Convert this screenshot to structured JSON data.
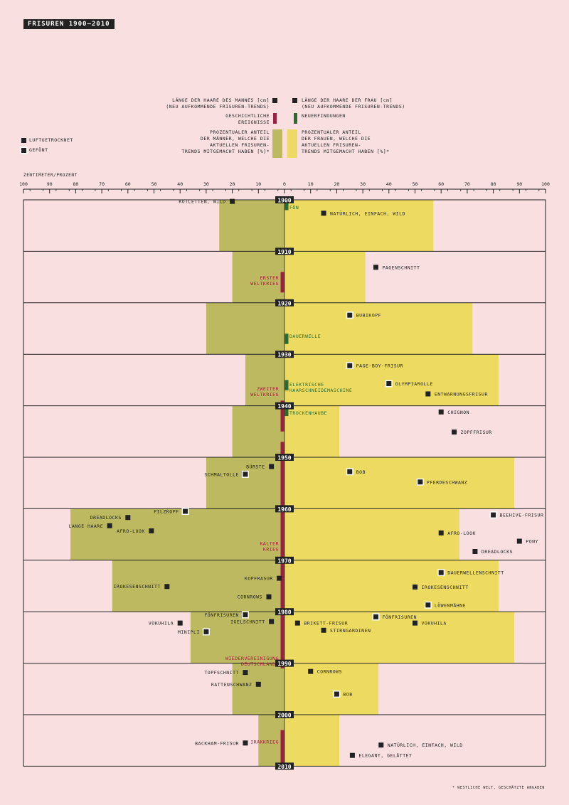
{
  "title": "FRISUREN 1900–2010",
  "footnote": "* WESTLICHE WELT, GESCHÄTZTE ANGABEN",
  "legend": {
    "men_length": "LÄNGE DER HAARE DES MANNES [cm]\n(NEU AUFKOMMENDE FRISUREN-TRENDS)",
    "women_length": "LÄNGE DER HAARE DER FRAU [cm]\n(NEU AUFKOMMENDE FRISUREN-TRENDS)",
    "historical": "GESCHICHTLICHE\nEREIGNISSE",
    "inventions": "NEUERFINDUNGEN",
    "men_percent": "PROZENTUALER ANTEIL\nDER MÄNNER, WELCHE DIE\nAKTUELLEN FRISUREN-\nTRENDS MITGEMACHT HABEN [%]*",
    "women_percent": "PROZENTUALER ANTEIL\nDER FRAUEN, WELCHE DIE\nAKTUELLEN FRISUREN-\nTRENDS MITGEMACHT HABEN [%]*",
    "air_dried": "LUFTGETROCKNET",
    "blow_dried": "GEFÖNT"
  },
  "axis_unit": "ZENTIMETER/PROZENT",
  "colors": {
    "background": "#f9dfe0",
    "men_bar": "#bcb960",
    "women_bar": "#ecdb60",
    "event": "#9b2142",
    "event_text": "#a8193a",
    "invention": "#2d6a2f",
    "invention_text": "#2d6a2f",
    "ink": "#222222"
  },
  "chart_data": {
    "type": "bar",
    "orientation": "diverging-horizontal",
    "x_ticks": [
      "100",
      "90",
      "80",
      "70",
      "60",
      "50",
      "40",
      "30",
      "20",
      "10",
      "0",
      "10",
      "20",
      "30",
      "40",
      "50",
      "60",
      "70",
      "80",
      "90",
      "100"
    ],
    "xlim": [
      -100,
      100
    ],
    "decades": [
      "1900",
      "1910",
      "1920",
      "1930",
      "1940",
      "1950",
      "1960",
      "1970",
      "1980",
      "1990",
      "2000",
      "2010"
    ],
    "series": [
      {
        "name": "PROZENTUALER ANTEIL DER MÄNNER",
        "values": [
          25,
          20,
          30,
          15,
          20,
          30,
          82,
          66,
          36,
          20,
          10
        ]
      },
      {
        "name": "PROZENTUALER ANTEIL DER FRAUEN",
        "values": [
          57,
          31,
          72,
          82,
          21,
          88,
          67,
          82,
          88,
          36,
          21
        ]
      }
    ],
    "men_styles": [
      {
        "label": "KOTLETTEN, WILD",
        "year": 1900.3,
        "value": 20,
        "style": "air"
      },
      {
        "label": "BÜRSTE",
        "year": 1951.8,
        "value": 5,
        "style": "air"
      },
      {
        "label": "SCHMALTOLLE",
        "year": 1953.3,
        "value": 15,
        "style": "blow"
      },
      {
        "label": "PILZKOPF",
        "year": 1960.5,
        "value": 38,
        "style": "blow"
      },
      {
        "label": "DREADLOCKS",
        "year": 1961.7,
        "value": 60,
        "style": "air"
      },
      {
        "label": "LANGE HAARE",
        "year": 1963.3,
        "value": 67,
        "style": "air"
      },
      {
        "label": "AFRO-LOOK",
        "year": 1964.3,
        "value": 51,
        "style": "air"
      },
      {
        "label": "KOPFRASUR",
        "year": 1973.5,
        "value": 2,
        "style": "air"
      },
      {
        "label": "IROKESENSCHNITT",
        "year": 1975.1,
        "value": 45,
        "style": "air"
      },
      {
        "label": "CORNROWS",
        "year": 1977.1,
        "value": 6,
        "style": "air"
      },
      {
        "label": "FÖNFRISUREN",
        "year": 1980.6,
        "value": 15,
        "style": "blow"
      },
      {
        "label": "IGELSCHNITT",
        "year": 1981.9,
        "value": 5,
        "style": "air"
      },
      {
        "label": "VOKUHILA",
        "year": 1982.2,
        "value": 40,
        "style": "air"
      },
      {
        "label": "MINIPLI",
        "year": 1983.9,
        "value": 30,
        "style": "blow"
      },
      {
        "label": "TOPFSCHNITT",
        "year": 1991.8,
        "value": 15,
        "style": "air"
      },
      {
        "label": "RATTENSCHWANZ",
        "year": 1994.1,
        "value": 10,
        "style": "air"
      },
      {
        "label": "BACKHAM-FRISUR",
        "year": 2005.5,
        "value": 15,
        "style": "air"
      }
    ],
    "women_styles": [
      {
        "label": "NATÜRLICH, EINFACH, WILD",
        "year": 1902.6,
        "value": 15,
        "style": "air"
      },
      {
        "label": "PAGENSCHNITT",
        "year": 1913.1,
        "value": 35,
        "style": "air"
      },
      {
        "label": "BUBIKOPF",
        "year": 1922.4,
        "value": 25,
        "style": "blow"
      },
      {
        "label": "PAGE-BOY-FRISUR",
        "year": 1932.2,
        "value": 25,
        "style": "blow"
      },
      {
        "label": "OLYMPIAROLLE",
        "year": 1935.7,
        "value": 40,
        "style": "blow"
      },
      {
        "label": "ENTWARNUNGSFRISUR",
        "year": 1937.7,
        "value": 55,
        "style": "air"
      },
      {
        "label": "CHIGNON",
        "year": 1941.2,
        "value": 60,
        "style": "air"
      },
      {
        "label": "ZOPFFRISUR",
        "year": 1945.1,
        "value": 65,
        "style": "air"
      },
      {
        "label": "BOB",
        "year": 1952.8,
        "value": 25,
        "style": "blow"
      },
      {
        "label": "PFERDESCHWANZ",
        "year": 1954.8,
        "value": 52,
        "style": "blow"
      },
      {
        "label": "BEEHIVE-FRISUR",
        "year": 1961.2,
        "value": 80,
        "style": "blow"
      },
      {
        "label": "AFRO-LOOK",
        "year": 1964.7,
        "value": 60,
        "style": "air"
      },
      {
        "label": "PONY",
        "year": 1966.3,
        "value": 90,
        "style": "air"
      },
      {
        "label": "DREADLOCKS",
        "year": 1968.3,
        "value": 73,
        "style": "air"
      },
      {
        "label": "DAUERWELLENSCHNITT",
        "year": 1972.4,
        "value": 60,
        "style": "blow"
      },
      {
        "label": "IROKESENSCHNITT",
        "year": 1975.2,
        "value": 50,
        "style": "air"
      },
      {
        "label": "LÖWENMÄHNE",
        "year": 1978.7,
        "value": 55,
        "style": "blow"
      },
      {
        "label": "FÖNFRISUREN",
        "year": 1981.0,
        "value": 35,
        "style": "blow"
      },
      {
        "label": "BRIKETT-FRISUR",
        "year": 1982.2,
        "value": 5,
        "style": "air"
      },
      {
        "label": "VOKUHILA",
        "year": 1982.2,
        "value": 50,
        "style": "air"
      },
      {
        "label": "STIRNGARDINEN",
        "year": 1983.6,
        "value": 15,
        "style": "air"
      },
      {
        "label": "CORNROWS",
        "year": 1991.6,
        "value": 10,
        "style": "air"
      },
      {
        "label": "BOB",
        "year": 1996.0,
        "value": 20,
        "style": "blow"
      },
      {
        "label": "NATÜRLICH, EINFACH, WILD",
        "year": 2005.9,
        "value": 37,
        "style": "air"
      },
      {
        "label": "ELEGANT, GELÄTTET",
        "year": 2007.9,
        "value": 26,
        "style": "air"
      }
    ],
    "events": [
      {
        "label": "ERSTER\nWELTKRIEG",
        "from": 1914,
        "to": 1918
      },
      {
        "label": "ZWEITER\nWELTKRIEG",
        "from": 1939,
        "to": 1945
      },
      {
        "label": "KALTER\nKRIEG",
        "from": 1947,
        "to": 1991
      },
      {
        "label": "WIEDERVEREINIGUNG\nDEUTSCHLANDS",
        "from": 1989,
        "to": 1990
      },
      {
        "label": "IRAKKRIEG",
        "from": 2003,
        "to": 2010
      }
    ],
    "inventions": [
      {
        "label": "FÖN",
        "from": 1900,
        "to": 1902
      },
      {
        "label": "DAUERWELLE",
        "from": 1926,
        "to": 1928
      },
      {
        "label": "ELEKTRISCHE\nHAARSCHNEIDEMASCHINE",
        "from": 1935,
        "to": 1937
      },
      {
        "label": "TROCKENHAUBE",
        "from": 1940,
        "to": 1942
      }
    ]
  }
}
